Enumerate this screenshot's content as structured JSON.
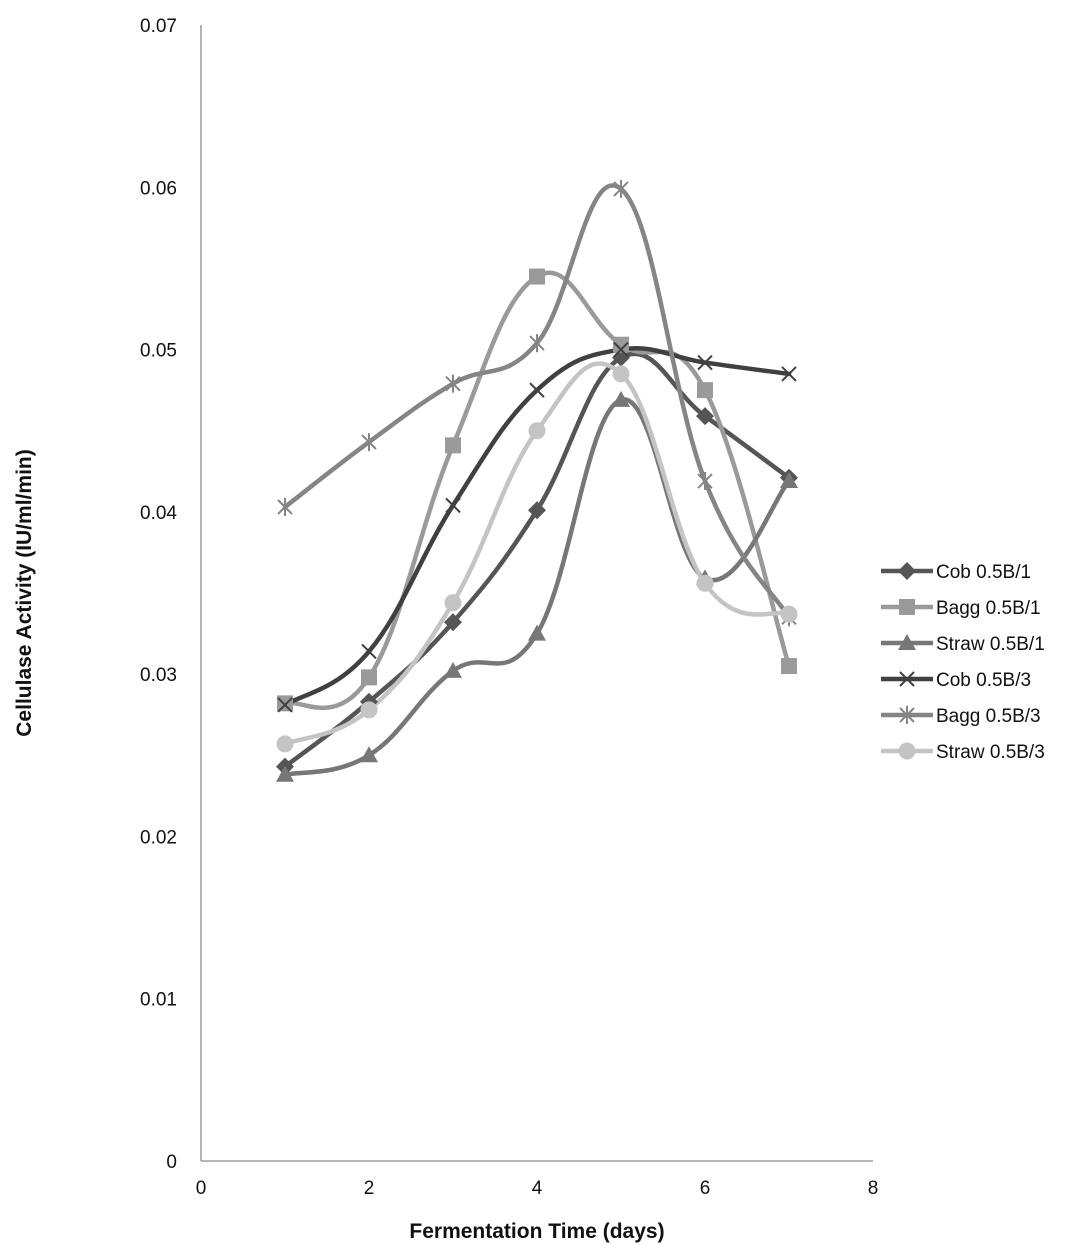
{
  "chart_data": {
    "type": "line",
    "title": "",
    "xlabel": "Fermentation Time (days)",
    "ylabel": "Cellulase Activity (IU/ml/min)",
    "xlim": [
      0,
      8
    ],
    "ylim": [
      0,
      0.07
    ],
    "x_ticks": [
      "0",
      "2",
      "4",
      "6",
      "8"
    ],
    "y_ticks": [
      "0",
      "0.01",
      "0.02",
      "0.03",
      "0.04",
      "0.05",
      "0.06",
      "0.07"
    ],
    "grid": false,
    "smooth": true,
    "legend_position": "right",
    "x": [
      1,
      2,
      3,
      4,
      5,
      6,
      7
    ],
    "series": [
      {
        "name": "Cob 0.5B/1",
        "marker": "diamond",
        "color": "#555555",
        "values": [
          0.0243,
          0.0283,
          0.0332,
          0.0401,
          0.0495,
          0.0459,
          0.0421
        ]
      },
      {
        "name": "Bagg 0.5B/1",
        "marker": "square",
        "color": "#9a9a9a",
        "values": [
          0.0282,
          0.0298,
          0.0441,
          0.0545,
          0.0503,
          0.0475,
          0.0305
        ]
      },
      {
        "name": "Straw 0.5B/1",
        "marker": "triangle",
        "color": "#777777",
        "values": [
          0.0238,
          0.025,
          0.0302,
          0.0325,
          0.0469,
          0.0359,
          0.0419
        ]
      },
      {
        "name": "Cob 0.5B/3",
        "marker": "x",
        "color": "#404040",
        "values": [
          0.0281,
          0.0314,
          0.0404,
          0.0475,
          0.05,
          0.0492,
          0.0485
        ]
      },
      {
        "name": "Bagg 0.5B/3",
        "marker": "star",
        "color": "#858585",
        "values": [
          0.0403,
          0.0443,
          0.0479,
          0.0504,
          0.0599,
          0.0419,
          0.0335
        ]
      },
      {
        "name": "Straw 0.5B/3",
        "marker": "circle",
        "color": "#c4c4c4",
        "values": [
          0.0257,
          0.0278,
          0.0344,
          0.045,
          0.0485,
          0.0356,
          0.0337
        ]
      }
    ]
  }
}
